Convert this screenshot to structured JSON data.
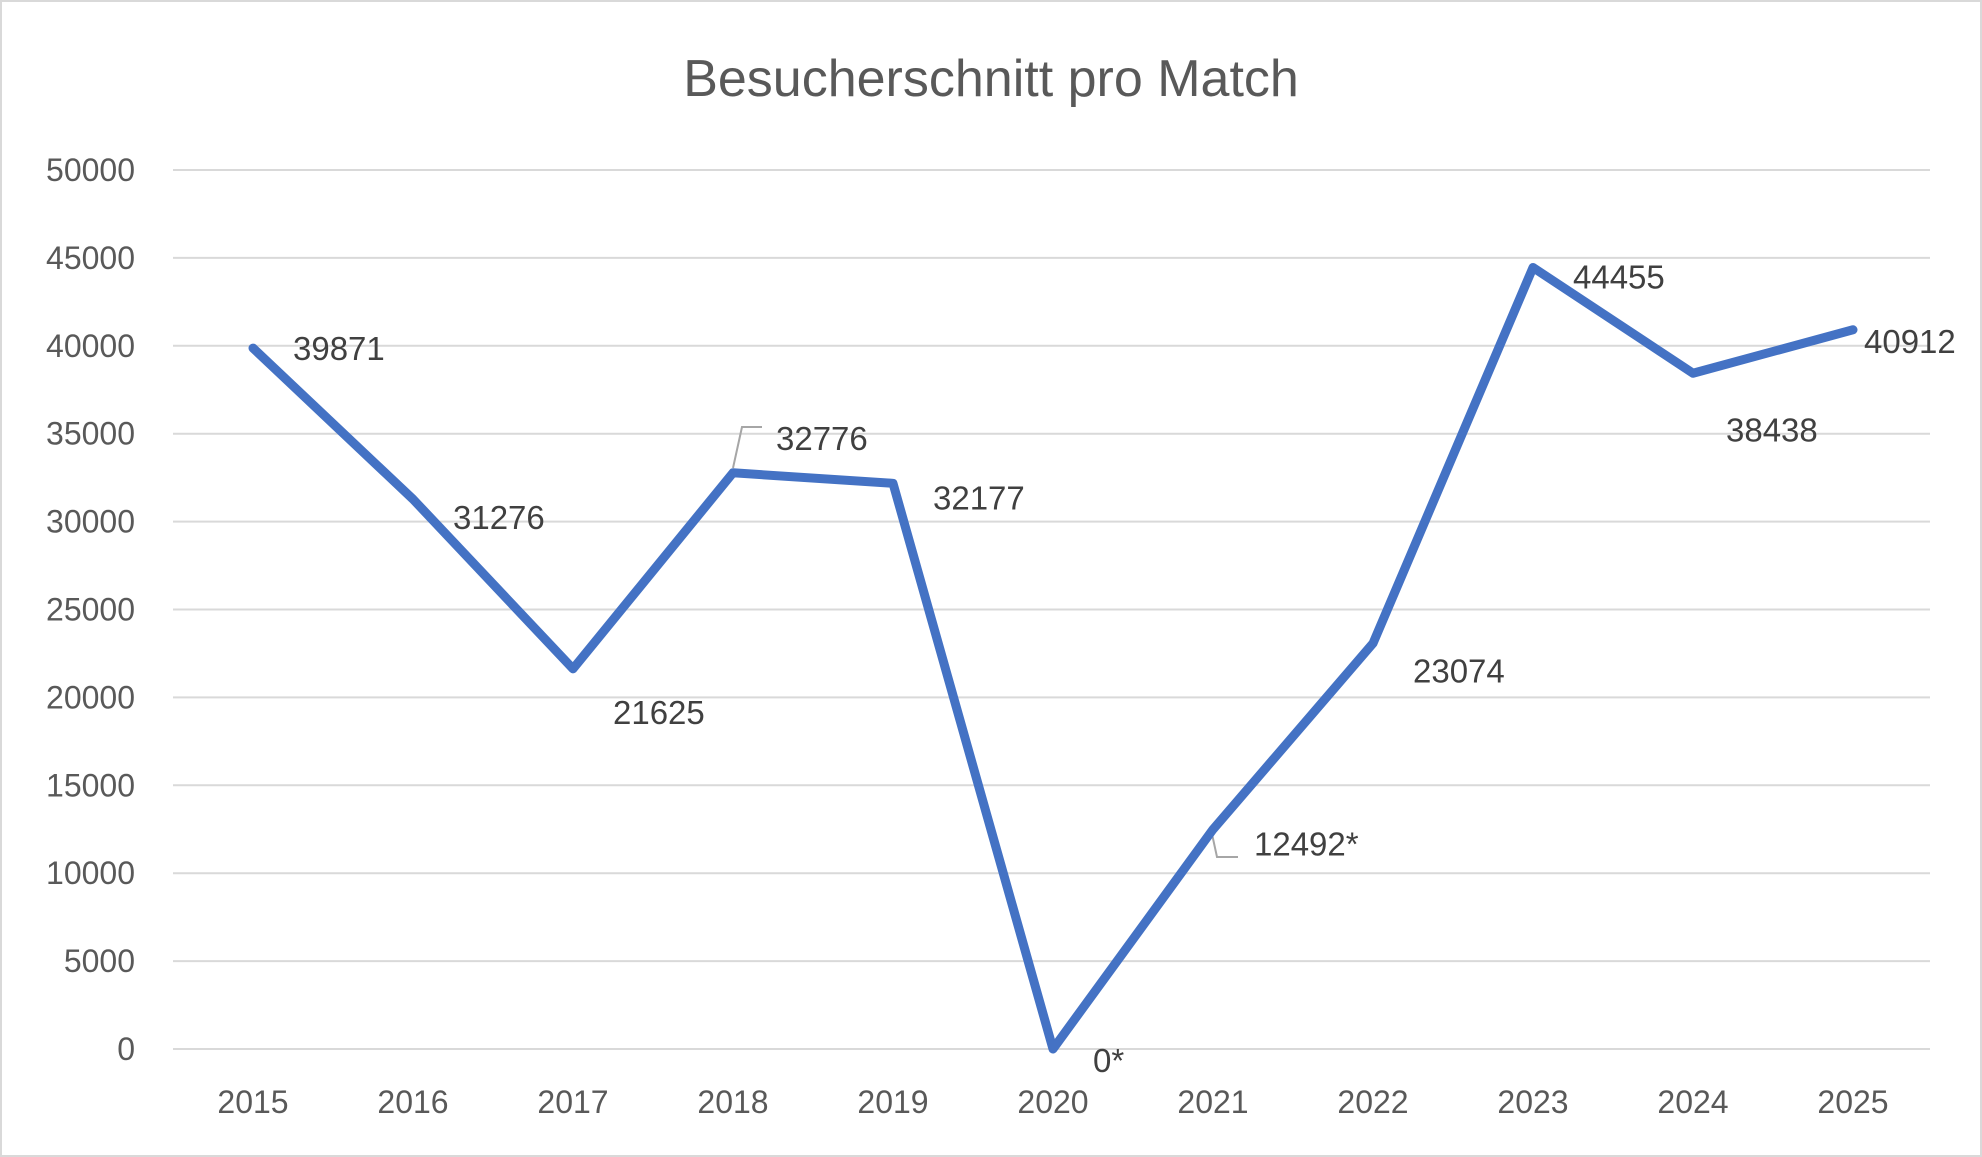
{
  "chart_data": {
    "type": "line",
    "title": "Besucherschnitt pro Match",
    "xlabel": "",
    "ylabel": "",
    "categories": [
      "2015",
      "2016",
      "2017",
      "2018",
      "2019",
      "2020",
      "2021",
      "2022",
      "2023",
      "2024",
      "2025"
    ],
    "series": [
      {
        "name": "Besucherschnitt",
        "color": "#4472C4",
        "values": [
          39871,
          31276,
          21625,
          32776,
          32177,
          0,
          12492,
          23074,
          44455,
          38438,
          40912
        ],
        "data_labels": [
          "39871",
          "31276",
          "21625",
          "32776",
          "32177",
          "0*",
          "12492*",
          "23074",
          "44455",
          "38438",
          "40912"
        ]
      }
    ],
    "ylim": [
      0,
      50000
    ],
    "yticks": [
      0,
      5000,
      10000,
      15000,
      20000,
      25000,
      30000,
      35000,
      40000,
      45000,
      50000
    ],
    "ytick_labels": [
      "0",
      "5000",
      "10000",
      "15000",
      "20000",
      "25000",
      "30000",
      "35000",
      "40000",
      "45000",
      "50000"
    ],
    "grid": true,
    "legend": "none"
  },
  "colors": {
    "line": "#4472C4",
    "gridline": "#D9D9D9",
    "axis_text": "#595959",
    "label_text": "#404040",
    "leader": "#A6A6A6",
    "border": "#D9D9D9"
  }
}
